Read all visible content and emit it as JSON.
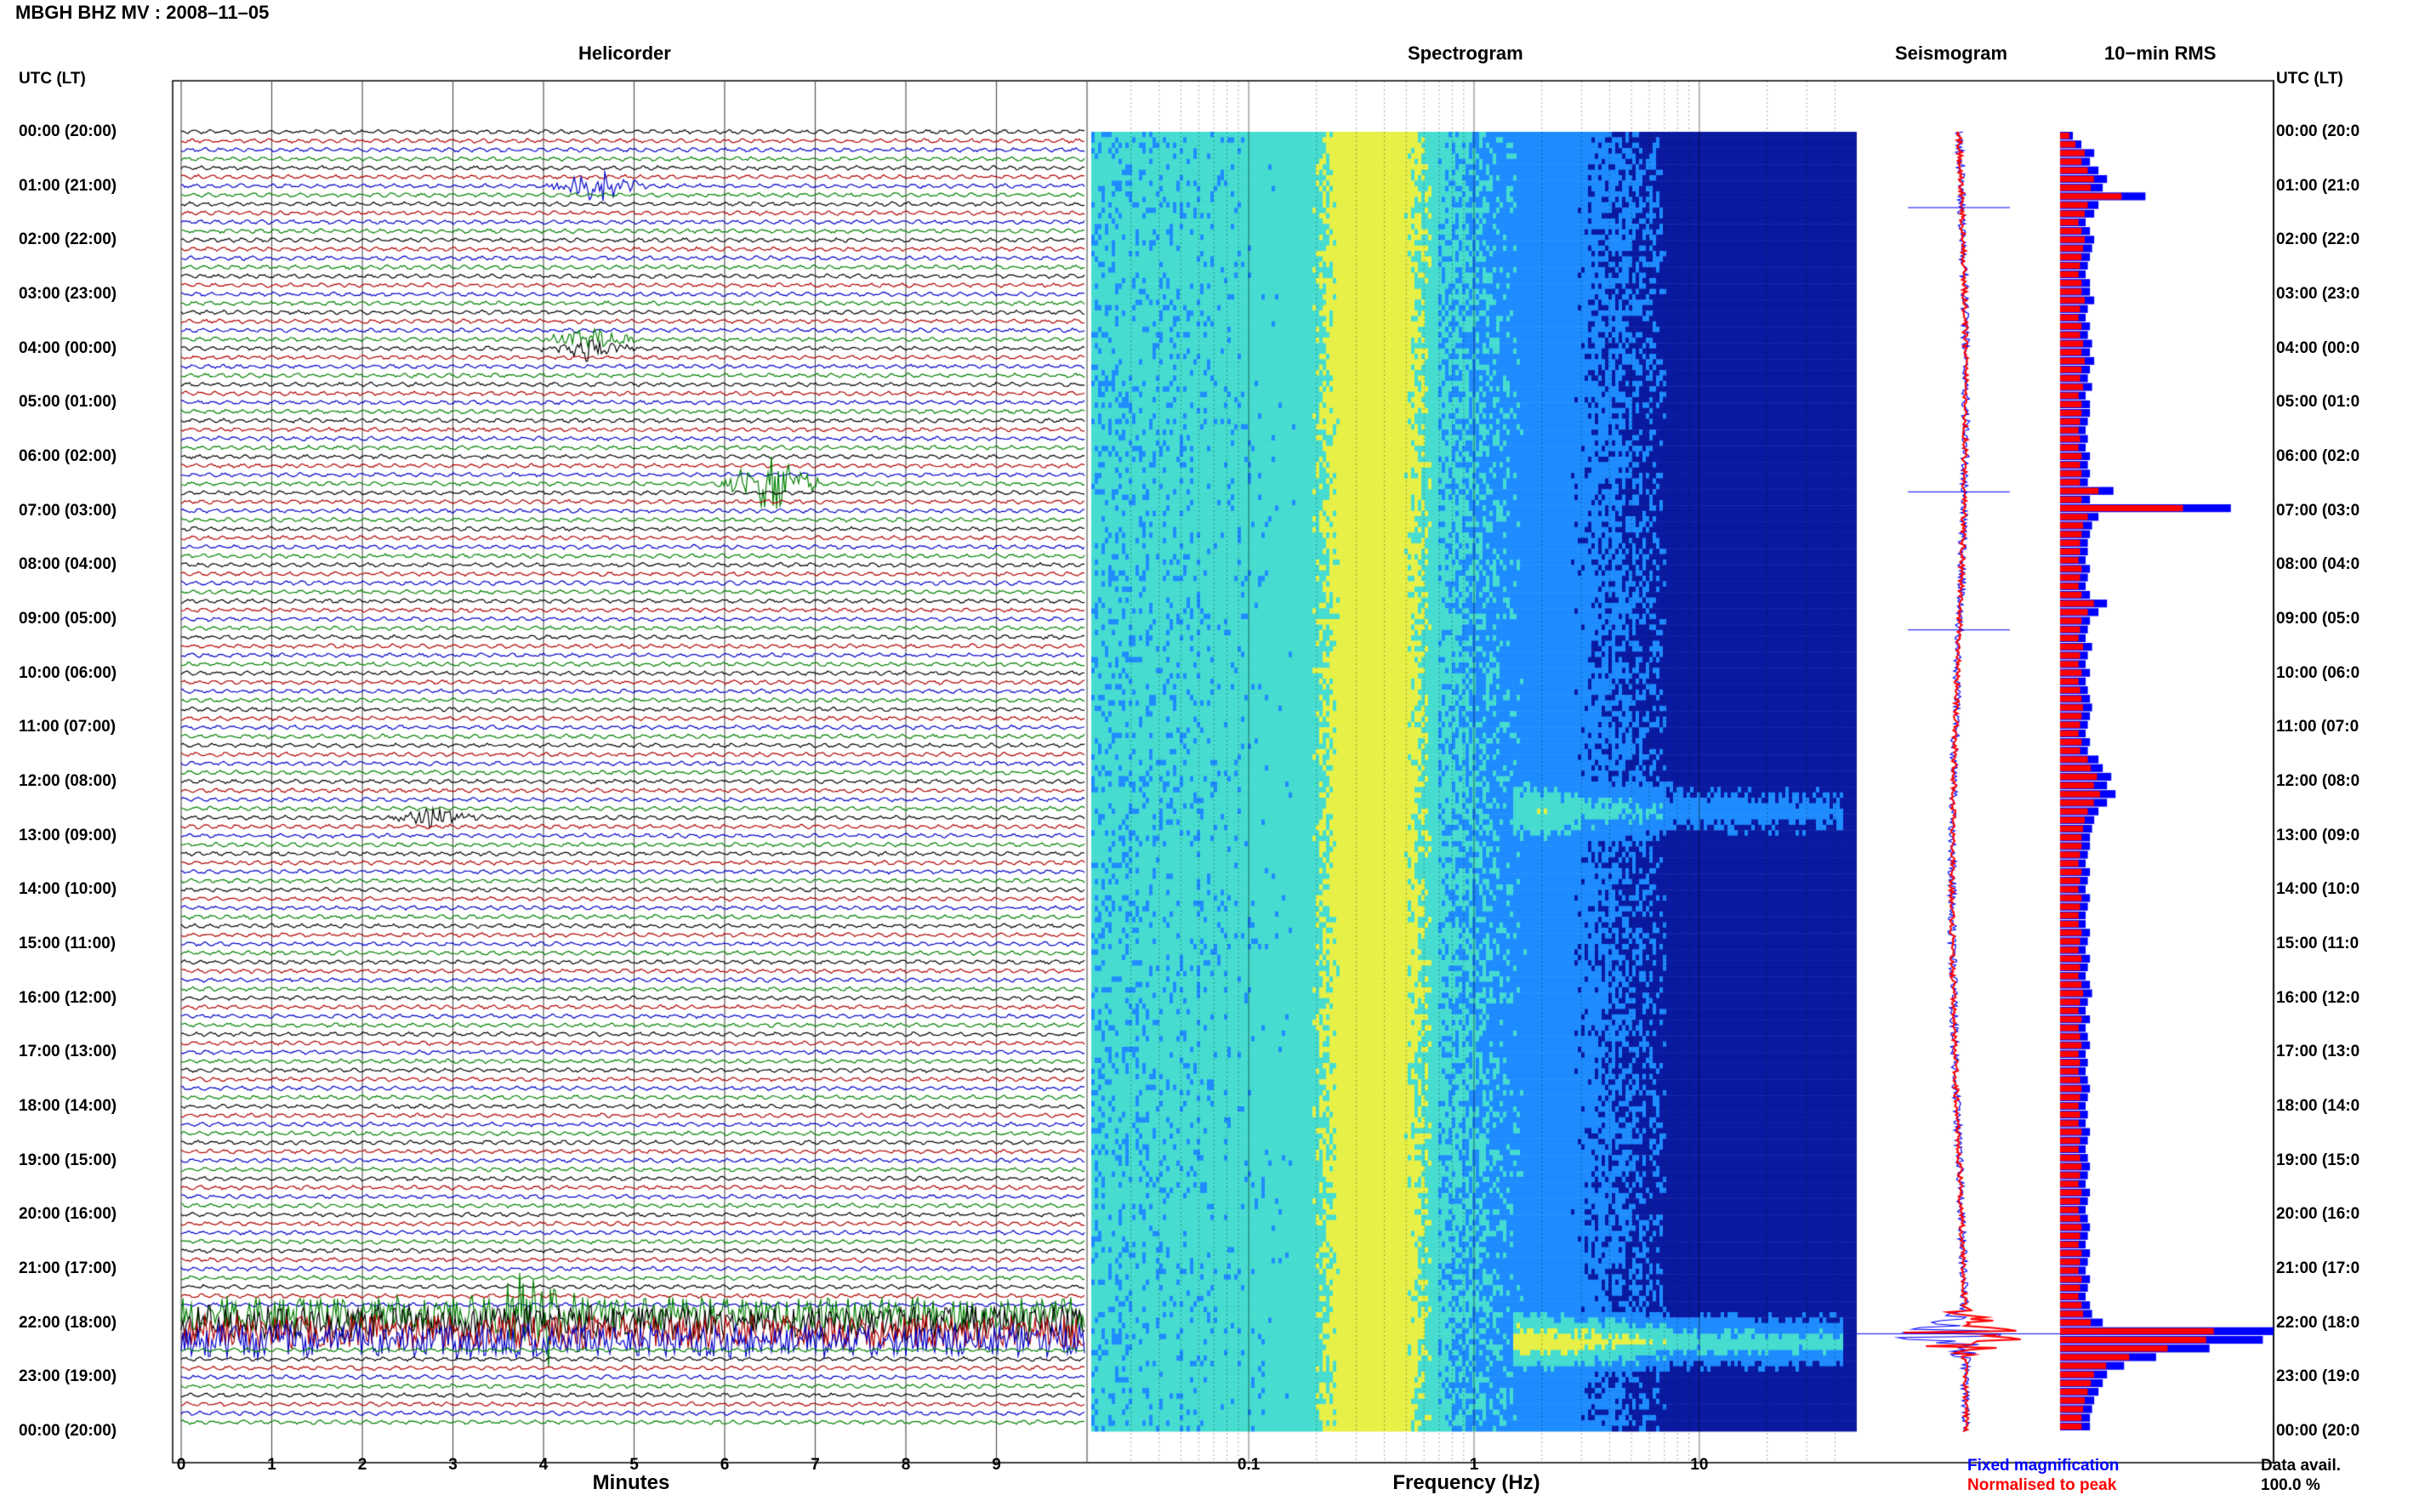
{
  "title": "MBGH BHZ MV : 2008–11–05",
  "panel_titles": {
    "helicorder": "Helicorder",
    "spectrogram": "Spectrogram",
    "seismogram": "Seismogram",
    "rms": "10−min RMS"
  },
  "axis_header": "UTC (LT)",
  "time_labels": [
    "00:00 (20:00)",
    "01:00 (21:00)",
    "02:00 (22:00)",
    "03:00 (23:00)",
    "04:00 (00:00)",
    "05:00 (01:00)",
    "06:00 (02:00)",
    "07:00 (03:00)",
    "08:00 (04:00)",
    "09:00 (05:00)",
    "10:00 (06:00)",
    "11:00 (07:00)",
    "12:00 (08:00)",
    "13:00 (09:00)",
    "14:00 (10:00)",
    "15:00 (11:00)",
    "16:00 (12:00)",
    "17:00 (13:00)",
    "18:00 (14:00)",
    "19:00 (15:00)",
    "20:00 (16:00)",
    "21:00 (17:00)",
    "22:00 (18:00)",
    "23:00 (19:00)",
    "00:00 (20:00)"
  ],
  "right_time_labels": [
    "00:00 (20:0",
    "01:00 (21:0",
    "02:00 (22:0",
    "03:00 (23:0",
    "04:00 (00:0",
    "05:00 (01:0",
    "06:00 (02:0",
    "07:00 (03:0",
    "08:00 (04:0",
    "09:00 (05:0",
    "10:00 (06:0",
    "11:00 (07:0",
    "12:00 (08:0",
    "13:00 (09:0",
    "14:00 (10:0",
    "15:00 (11:0",
    "16:00 (12:0",
    "17:00 (13:0",
    "18:00 (14:0",
    "19:00 (15:0",
    "20:00 (16:0",
    "21:00 (17:0",
    "22:00 (18:0",
    "23:00 (19:0",
    "00:00 (20:0"
  ],
  "helicorder": {
    "xlabel": "Minutes",
    "x_ticks": [
      "0",
      "1",
      "2",
      "3",
      "4",
      "5",
      "6",
      "7",
      "8",
      "9"
    ],
    "lines_per_hour": 6,
    "trace_colors": [
      "#000000",
      "#b00000",
      "#0000c8",
      "#008000"
    ],
    "events": [
      {
        "hour": 1.16,
        "minute": 4.6,
        "amp": 1.0
      },
      {
        "hour": 4.0,
        "minute": 4.5,
        "amp": 0.7
      },
      {
        "hour": 6.66,
        "minute": 6.5,
        "amp": 1.6
      },
      {
        "hour": 12.67,
        "minute": 2.8,
        "amp": 0.6
      },
      {
        "hour": 21.9,
        "minute": 3.95,
        "amp": 3.0
      }
    ],
    "noisy_band_hours": [
      21.8,
      22.4
    ]
  },
  "spectrogram": {
    "xlabel": "Frequency (Hz)",
    "x_ticks": [
      "0.1",
      "1",
      "10"
    ],
    "freq_range_hz": [
      0.02,
      50
    ],
    "log_scale": true,
    "colors": {
      "low": "#0a1aa0",
      "mid": "#1e8cff",
      "cyan": "#46dcd0",
      "yellow": "#e6f046"
    },
    "bright_bands_hours": [
      12.5,
      22.3
    ]
  },
  "seismogram": {
    "legend_fixed": "Fixed magnification",
    "legend_normalised": "Normalised to peak",
    "color_fixed": "#0000ff",
    "color_normalised": "#ff0000"
  },
  "rms": {
    "color_fixed": "#0000ff",
    "color_normalised": "#ff0000",
    "values": [
      0.06,
      0.1,
      0.16,
      0.14,
      0.18,
      0.22,
      0.2,
      0.4,
      0.18,
      0.16,
      0.12,
      0.14,
      0.16,
      0.15,
      0.14,
      0.13,
      0.12,
      0.14,
      0.14,
      0.16,
      0.13,
      0.12,
      0.14,
      0.13,
      0.15,
      0.14,
      0.16,
      0.14,
      0.13,
      0.15,
      0.12,
      0.14,
      0.14,
      0.13,
      0.12,
      0.13,
      0.12,
      0.14,
      0.13,
      0.14,
      0.13,
      0.25,
      0.14,
      0.8,
      0.18,
      0.15,
      0.14,
      0.13,
      0.13,
      0.12,
      0.14,
      0.13,
      0.12,
      0.14,
      0.22,
      0.18,
      0.14,
      0.13,
      0.12,
      0.15,
      0.13,
      0.12,
      0.14,
      0.12,
      0.13,
      0.14,
      0.15,
      0.14,
      0.13,
      0.12,
      0.14,
      0.13,
      0.18,
      0.2,
      0.24,
      0.22,
      0.26,
      0.22,
      0.18,
      0.16,
      0.15,
      0.14,
      0.14,
      0.13,
      0.12,
      0.14,
      0.13,
      0.12,
      0.14,
      0.13,
      0.12,
      0.12,
      0.14,
      0.13,
      0.12,
      0.14,
      0.13,
      0.12,
      0.14,
      0.15,
      0.13,
      0.12,
      0.14,
      0.12,
      0.13,
      0.14,
      0.12,
      0.13,
      0.12,
      0.13,
      0.14,
      0.13,
      0.12,
      0.13,
      0.12,
      0.14,
      0.13,
      0.12,
      0.13,
      0.14,
      0.13,
      0.12,
      0.14,
      0.13,
      0.12,
      0.13,
      0.14,
      0.13,
      0.12,
      0.14,
      0.13,
      0.12,
      0.14,
      0.13,
      0.12,
      0.14,
      0.15,
      0.2,
      1.0,
      0.95,
      0.7,
      0.45,
      0.3,
      0.22,
      0.2,
      0.18,
      0.16,
      0.15,
      0.14,
      0.14
    ]
  },
  "data_avail_label": "Data avail.",
  "data_avail_value": "100.0 %"
}
